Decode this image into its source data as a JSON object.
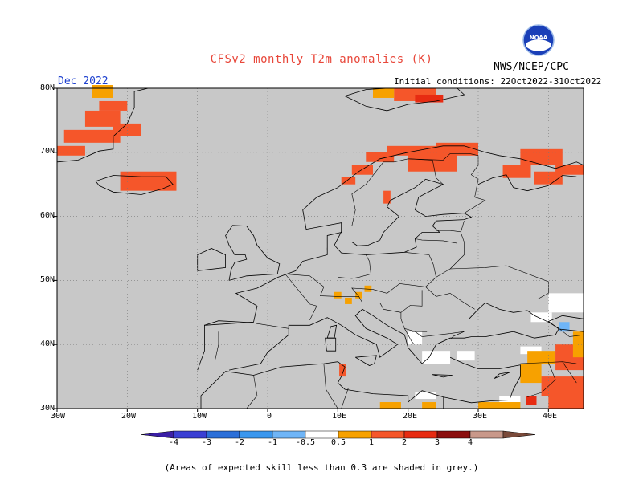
{
  "title": "CFSv2 monthly T2m anomalies (K)",
  "agency": "NWS/NCEP/CPC",
  "logo_text": "NOAA",
  "valid_month": "Dec 2022",
  "initial_conditions": "Initial conditions: 22Oct2022-31Oct2022",
  "footnote": "(Areas of expected skill less than 0.3 are shaded in grey.)",
  "lat_labels": [
    "80N",
    "70N",
    "60N",
    "50N",
    "40N",
    "30N"
  ],
  "lon_labels": [
    "30W",
    "20W",
    "10W",
    "0",
    "10E",
    "20E",
    "30E",
    "40E"
  ],
  "colorbar": {
    "labels": [
      "-4",
      "-3",
      "-2",
      "-1",
      "-0.5",
      "0.5",
      "1",
      "2",
      "3",
      "4"
    ],
    "colors": [
      "#3b1fa6",
      "#3a3fd3",
      "#2c6fd8",
      "#3a97ee",
      "#6fb5f7",
      "#ffffff",
      "#f7a100",
      "#f5562a",
      "#e72b12",
      "#8b0e0e",
      "#c8988a",
      "#7a4a3a"
    ]
  },
  "map": {
    "lon_range": [
      -30,
      45
    ],
    "lat_range": [
      30,
      80
    ],
    "grey_color": "#c8c8c8",
    "anomaly_cells": [
      {
        "lon": -25,
        "lat": 78.5,
        "w": 3,
        "h": 2,
        "value": 0.7
      },
      {
        "lon": -24,
        "lat": 76.5,
        "w": 4,
        "h": 1.5,
        "value": 1.5
      },
      {
        "lon": -26,
        "lat": 74,
        "w": 5,
        "h": 2.5,
        "value": 1.5
      },
      {
        "lon": -29,
        "lat": 71.5,
        "w": 8,
        "h": 2,
        "value": 1.5
      },
      {
        "lon": -30,
        "lat": 69.5,
        "w": 4,
        "h": 1.5,
        "value": 1.5
      },
      {
        "lon": -22,
        "lat": 72.5,
        "w": 4,
        "h": 2,
        "value": 1.5
      },
      {
        "lon": -21,
        "lat": 64,
        "w": 8,
        "h": 3,
        "value": 1.5
      },
      {
        "lon": 18,
        "lat": 78,
        "w": 6,
        "h": 2,
        "value": 1.5
      },
      {
        "lon": 21,
        "lat": 77.8,
        "w": 4,
        "h": 1.2,
        "value": 2.5
      },
      {
        "lon": 15,
        "lat": 78.5,
        "w": 3,
        "h": 1.5,
        "value": 0.7
      },
      {
        "lon": 14,
        "lat": 68.5,
        "w": 4,
        "h": 1.5,
        "value": 1.5
      },
      {
        "lon": 17,
        "lat": 69.5,
        "w": 8,
        "h": 1.5,
        "value": 1.5
      },
      {
        "lon": 20,
        "lat": 67,
        "w": 7,
        "h": 3,
        "value": 1.5
      },
      {
        "lon": 24,
        "lat": 69.5,
        "w": 6,
        "h": 2,
        "value": 1.5
      },
      {
        "lon": 12,
        "lat": 66.5,
        "w": 3,
        "h": 1.5,
        "value": 1.5
      },
      {
        "lon": 10.5,
        "lat": 65,
        "w": 2,
        "h": 1.2,
        "value": 1.5
      },
      {
        "lon": 16.5,
        "lat": 62,
        "w": 1,
        "h": 2,
        "value": 1.5
      },
      {
        "lon": 36,
        "lat": 68,
        "w": 6,
        "h": 2.5,
        "value": 1.5
      },
      {
        "lon": 33.5,
        "lat": 66,
        "w": 4,
        "h": 2,
        "value": 1.5
      },
      {
        "lon": 38,
        "lat": 65,
        "w": 4,
        "h": 2,
        "value": 1.5
      },
      {
        "lon": 41,
        "lat": 66.5,
        "w": 4,
        "h": 1.5,
        "value": 1.5
      },
      {
        "lon": 9.5,
        "lat": 47.2,
        "w": 1,
        "h": 1,
        "value": 0.7
      },
      {
        "lon": 11,
        "lat": 46.3,
        "w": 1,
        "h": 1,
        "value": 0.7
      },
      {
        "lon": 12.5,
        "lat": 47.2,
        "w": 1,
        "h": 1,
        "value": 0.7
      },
      {
        "lon": 13.8,
        "lat": 48.2,
        "w": 1,
        "h": 1,
        "value": 0.7
      },
      {
        "lon": 10.2,
        "lat": 35,
        "w": 1,
        "h": 2,
        "value": 1.5
      },
      {
        "lon": 37,
        "lat": 37,
        "w": 4,
        "h": 2,
        "value": 0.7
      },
      {
        "lon": 36,
        "lat": 34,
        "w": 3,
        "h": 3,
        "value": 0.7
      },
      {
        "lon": 41,
        "lat": 36,
        "w": 4,
        "h": 4,
        "value": 1.5
      },
      {
        "lon": 39,
        "lat": 32,
        "w": 6,
        "h": 3,
        "value": 1.5
      },
      {
        "lon": 40,
        "lat": 30,
        "w": 5,
        "h": 2,
        "value": 1.5
      },
      {
        "lon": 43.5,
        "lat": 38,
        "w": 1.5,
        "h": 4,
        "value": 0.7
      },
      {
        "lon": 36.8,
        "lat": 30.5,
        "w": 1.5,
        "h": 1.5,
        "value": 2.5
      },
      {
        "lon": 30,
        "lat": 30,
        "w": 6,
        "h": 1,
        "value": 0.7
      },
      {
        "lon": 16,
        "lat": 30,
        "w": 3,
        "h": 1,
        "value": 0.7
      },
      {
        "lon": 22,
        "lat": 30,
        "w": 2,
        "h": 1,
        "value": 0.7
      }
    ],
    "white_cells": [
      {
        "lon": 40,
        "lat": 45,
        "w": 5,
        "h": 3
      },
      {
        "lon": 37.5,
        "lat": 43.5,
        "w": 3,
        "h": 1.5
      },
      {
        "lon": 36,
        "lat": 38.5,
        "w": 3,
        "h": 1.2
      },
      {
        "lon": 20,
        "lat": 40,
        "w": 2,
        "h": 2
      },
      {
        "lon": 22,
        "lat": 37,
        "w": 4,
        "h": 2
      },
      {
        "lon": 27,
        "lat": 37.5,
        "w": 2.5,
        "h": 1.5
      },
      {
        "lon": 21,
        "lat": 31.5,
        "w": 3,
        "h": 1
      },
      {
        "lon": 33,
        "lat": 31,
        "w": 3,
        "h": 1
      }
    ],
    "blue_cells": [
      {
        "lon": 41.5,
        "lat": 42,
        "w": 1.5,
        "h": 1.5,
        "value": -0.7
      }
    ]
  }
}
